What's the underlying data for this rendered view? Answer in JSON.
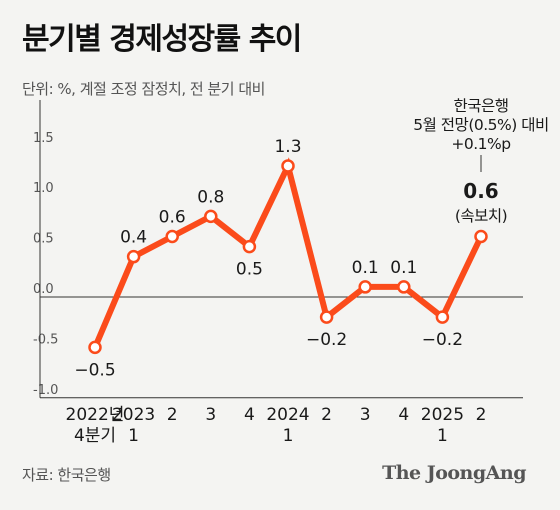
{
  "title": "분기별 경제성장률 추이",
  "unit_note": "단위: %, 계절 조정 잠정치, 전 분기 대비",
  "source": "자료: 한국은행",
  "brand": "The JoongAng",
  "colors": {
    "line": "#fb4b1b",
    "axis": "#333333",
    "marker_fill": "#ffffff",
    "background": "#f4f4f2"
  },
  "chart_data": {
    "type": "line",
    "title": "분기별 경제성장률 추이",
    "ylabel": "",
    "xlabel": "",
    "ylim": [
      -1.0,
      1.5
    ],
    "yticks": [
      1.5,
      1.0,
      0.5,
      0.0,
      -0.5,
      -1.0
    ],
    "ytick_labels": [
      "1.5",
      "1.0",
      "0.5",
      "0.0",
      "-0.5",
      "-1.0"
    ],
    "categories": [
      [
        "2022년",
        "4분기"
      ],
      [
        "2023",
        "1"
      ],
      [
        "2"
      ],
      [
        "3"
      ],
      [
        "4"
      ],
      [
        "2024",
        "1"
      ],
      [
        "2"
      ],
      [
        "3"
      ],
      [
        "4"
      ],
      [
        "2025",
        "1"
      ],
      [
        "2"
      ]
    ],
    "values": [
      -0.5,
      0.4,
      0.6,
      0.8,
      0.5,
      1.3,
      -0.2,
      0.1,
      0.1,
      -0.2,
      0.6
    ],
    "value_labels": [
      "−0.5",
      "0.4",
      "0.6",
      "0.8",
      "0.5",
      "1.3",
      "−0.2",
      "0.1",
      "0.1",
      "−0.2",
      ""
    ],
    "label_positions": [
      "below",
      "above",
      "above",
      "above",
      "below",
      "above",
      "below",
      "above",
      "above",
      "below",
      "above"
    ],
    "grid": false,
    "legend": "none",
    "annotation": {
      "lines": [
        "한국은행",
        "5월 전망(0.5%) 대비",
        "+0.1%p"
      ],
      "value": "0.6",
      "note": "(속보치)"
    }
  }
}
